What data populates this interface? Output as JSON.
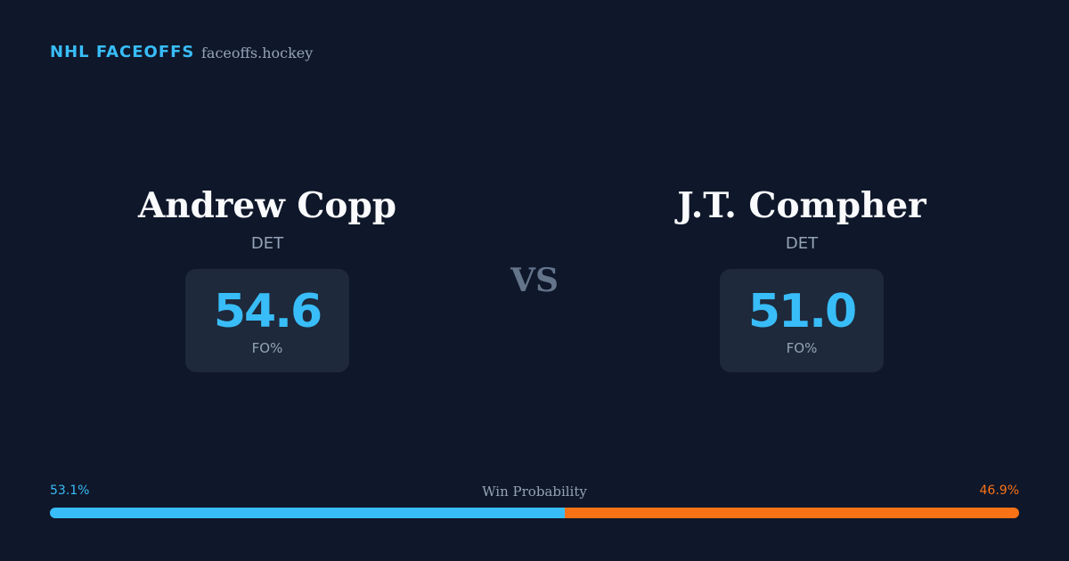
{
  "header": {
    "brand": "NHL FACEOFFS",
    "site": "faceoffs.hockey"
  },
  "players": [
    {
      "name": "Andrew Copp",
      "team": "DET",
      "fo": "54.6",
      "fo_label": "FO%"
    },
    {
      "name": "J.T. Compher",
      "team": "DET",
      "fo": "51.0",
      "fo_label": "FO%"
    }
  ],
  "vs": "VS",
  "win_probability": {
    "label": "Win Probability",
    "values": [
      53.1,
      46.9
    ],
    "value_labels": [
      "53.1%",
      "46.9%"
    ],
    "colors": [
      "#38bdf8",
      "#f97316"
    ]
  }
}
